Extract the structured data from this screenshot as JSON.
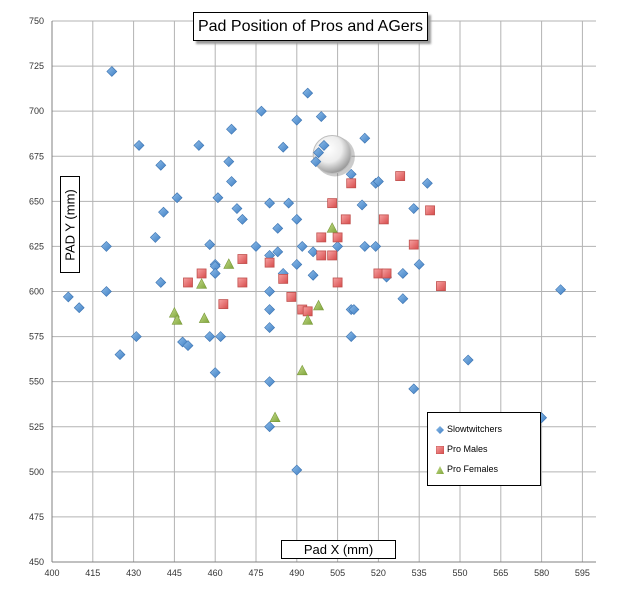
{
  "chart_data": {
    "type": "scatter",
    "title": "Pad Position of Pros and AGers",
    "xlabel": "Pad X (mm)",
    "ylabel": "PAD Y (mm)",
    "xlim": [
      400,
      600
    ],
    "ylim": [
      450,
      750
    ],
    "xticks": [
      400,
      415,
      430,
      445,
      460,
      475,
      490,
      505,
      520,
      535,
      550,
      565,
      580,
      595
    ],
    "yticks": [
      450,
      475,
      500,
      525,
      550,
      575,
      600,
      625,
      650,
      675,
      700,
      725,
      750
    ],
    "grid": true,
    "legend_position": "bottom-right",
    "series": [
      {
        "name": "Slowtwitchers",
        "marker": "diamond",
        "color": "#5b9bd5",
        "points": [
          [
            422,
            722
          ],
          [
            406,
            597
          ],
          [
            410,
            591
          ],
          [
            420,
            625
          ],
          [
            420,
            600
          ],
          [
            425,
            565
          ],
          [
            431,
            575
          ],
          [
            432,
            681
          ],
          [
            438,
            630
          ],
          [
            440,
            670
          ],
          [
            440,
            605
          ],
          [
            441,
            644
          ],
          [
            446,
            652
          ],
          [
            448,
            572
          ],
          [
            450,
            570
          ],
          [
            454,
            681
          ],
          [
            458,
            575
          ],
          [
            458,
            626
          ],
          [
            460,
            555
          ],
          [
            460,
            615
          ],
          [
            460,
            614
          ],
          [
            460,
            610
          ],
          [
            461,
            652
          ],
          [
            462,
            575
          ],
          [
            465,
            672
          ],
          [
            466,
            661
          ],
          [
            466,
            690
          ],
          [
            468,
            646
          ],
          [
            470,
            640
          ],
          [
            475,
            625
          ],
          [
            477,
            700
          ],
          [
            480,
            525
          ],
          [
            480,
            550
          ],
          [
            480,
            580
          ],
          [
            480,
            590
          ],
          [
            480,
            600
          ],
          [
            480,
            649
          ],
          [
            480,
            620
          ],
          [
            483,
            622
          ],
          [
            483,
            635
          ],
          [
            485,
            680
          ],
          [
            485,
            610
          ],
          [
            487,
            649
          ],
          [
            490,
            501
          ],
          [
            490,
            615
          ],
          [
            490,
            640
          ],
          [
            490,
            695
          ],
          [
            492,
            625
          ],
          [
            494,
            710
          ],
          [
            496,
            622
          ],
          [
            496,
            609
          ],
          [
            497,
            672
          ],
          [
            498,
            677
          ],
          [
            499,
            697
          ],
          [
            500,
            681
          ],
          [
            505,
            625
          ],
          [
            510,
            665
          ],
          [
            510,
            575
          ],
          [
            510,
            590
          ],
          [
            511,
            590
          ],
          [
            514,
            648
          ],
          [
            515,
            685
          ],
          [
            515,
            625
          ],
          [
            519,
            625
          ],
          [
            519,
            660
          ],
          [
            520,
            661
          ],
          [
            523,
            608
          ],
          [
            529,
            610
          ],
          [
            529,
            596
          ],
          [
            533,
            646
          ],
          [
            533,
            546
          ],
          [
            535,
            615
          ],
          [
            538,
            660
          ],
          [
            553,
            562
          ],
          [
            580,
            530
          ],
          [
            587,
            601
          ]
        ]
      },
      {
        "name": "Pro Males",
        "marker": "square",
        "color": "#e46c6c",
        "points": [
          [
            450,
            605
          ],
          [
            455,
            610
          ],
          [
            463,
            593
          ],
          [
            470,
            618
          ],
          [
            470,
            605
          ],
          [
            480,
            616
          ],
          [
            485,
            607
          ],
          [
            488,
            597
          ],
          [
            492,
            590
          ],
          [
            494,
            589
          ],
          [
            499,
            630
          ],
          [
            499,
            620
          ],
          [
            503,
            649
          ],
          [
            503,
            620
          ],
          [
            505,
            630
          ],
          [
            505,
            605
          ],
          [
            508,
            640
          ],
          [
            510,
            660
          ],
          [
            520,
            610
          ],
          [
            522,
            640
          ],
          [
            523,
            610
          ],
          [
            528,
            664
          ],
          [
            533,
            626
          ],
          [
            539,
            645
          ],
          [
            543,
            603
          ]
        ]
      },
      {
        "name": "Pro Females",
        "marker": "triangle",
        "color": "#9bbb59",
        "points": [
          [
            445,
            588
          ],
          [
            446,
            584
          ],
          [
            455,
            604
          ],
          [
            456,
            585
          ],
          [
            465,
            615
          ],
          [
            482,
            530
          ],
          [
            492,
            556
          ],
          [
            494,
            584
          ],
          [
            498,
            592
          ],
          [
            503,
            635
          ]
        ]
      }
    ]
  }
}
